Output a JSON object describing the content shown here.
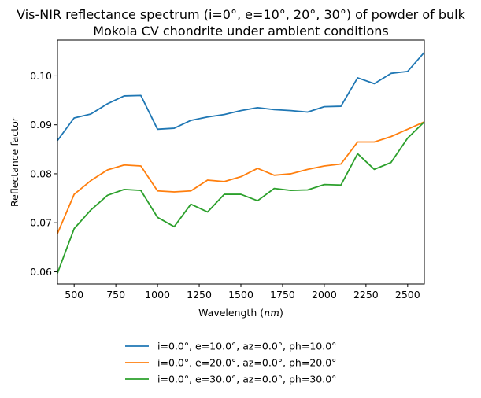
{
  "chart_data": {
    "type": "line",
    "title_lines": [
      "Vis-NIR reflectance spectrum (i=0°, e=10°, 20°, 30°) of powder of bulk",
      "Mokoia CV chondrite under ambient conditions"
    ],
    "xlabel_prefix": "Wavelength (",
    "xlabel_unit": "nm",
    "xlabel_suffix": ")",
    "ylabel": "Reflectance factor",
    "xlim": [
      400,
      2600
    ],
    "ylim": [
      0.0575,
      0.1073
    ],
    "xticks": [
      500,
      750,
      1000,
      1250,
      1500,
      1750,
      2000,
      2250,
      2500
    ],
    "yticks": [
      0.06,
      0.07,
      0.08,
      0.09,
      0.1
    ],
    "ytick_labels": [
      "0.06",
      "0.07",
      "0.08",
      "0.09",
      "0.10"
    ],
    "grid": false,
    "legend_position": "below the plot, centered",
    "x": [
      400,
      500,
      600,
      700,
      800,
      900,
      1000,
      1100,
      1200,
      1300,
      1400,
      1500,
      1600,
      1700,
      1800,
      1900,
      2000,
      2100,
      2200,
      2300,
      2400,
      2500,
      2600
    ],
    "series": [
      {
        "name": "i=0.0°, e=10.0°, az=0.0°, ph=10.0°",
        "color": "#1f77b4",
        "values": [
          0.0868,
          0.0914,
          0.0922,
          0.0943,
          0.0959,
          0.096,
          0.0891,
          0.0893,
          0.0909,
          0.0916,
          0.0921,
          0.0929,
          0.0935,
          0.0931,
          0.0929,
          0.0926,
          0.0937,
          0.0938,
          0.0996,
          0.0984,
          0.1005,
          0.1009,
          0.1048
        ]
      },
      {
        "name": "i=0.0°, e=20.0°, az=0.0°, ph=20.0°",
        "color": "#ff7f0e",
        "values": [
          0.0678,
          0.0758,
          0.0786,
          0.0808,
          0.0818,
          0.0816,
          0.0765,
          0.0763,
          0.0765,
          0.0787,
          0.0784,
          0.0794,
          0.0811,
          0.0797,
          0.08,
          0.0809,
          0.0816,
          0.082,
          0.0865,
          0.0865,
          0.0876,
          0.0891,
          0.0906
        ]
      },
      {
        "name": "i=0.0°, e=30.0°, az=0.0°, ph=30.0°",
        "color": "#2ca02c",
        "values": [
          0.0597,
          0.0688,
          0.0726,
          0.0756,
          0.0768,
          0.0766,
          0.0711,
          0.0692,
          0.0738,
          0.0722,
          0.0758,
          0.0758,
          0.0745,
          0.077,
          0.0766,
          0.0767,
          0.0778,
          0.0777,
          0.0841,
          0.0809,
          0.0823,
          0.0873,
          0.0906
        ]
      }
    ]
  }
}
